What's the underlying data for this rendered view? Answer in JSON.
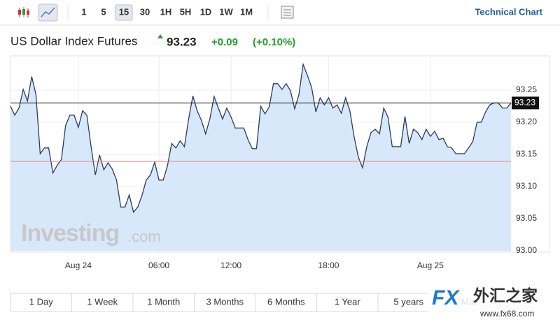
{
  "toolbar": {
    "intervals": [
      "1",
      "5",
      "15",
      "30",
      "1H",
      "5H",
      "1D",
      "1W",
      "1M"
    ],
    "selected_index": 2,
    "technical_chart": "Technical Chart"
  },
  "header": {
    "name": "US Dollar Index Futures",
    "price": "93.23",
    "change": "+0.09",
    "change_percent": "(+0.10%)"
  },
  "chart_data": {
    "type": "area",
    "color": "#2c3b5e",
    "fill": "#d8e8fb",
    "categories": [
      null,
      null,
      null,
      null,
      null,
      null,
      null,
      null,
      null,
      null,
      null,
      null,
      null,
      null,
      null,
      null,
      "Aug 24",
      null,
      null,
      null,
      null,
      null,
      null,
      null,
      null,
      null,
      null,
      null,
      null,
      null,
      null,
      null,
      null,
      null,
      null,
      "06:00",
      null,
      null,
      null,
      null,
      null,
      null,
      null,
      null,
      null,
      null,
      null,
      null,
      null,
      null,
      null,
      null,
      "12:00",
      null,
      null,
      null,
      null,
      null,
      null,
      null,
      null,
      null,
      null,
      null,
      null,
      null,
      null,
      null,
      null,
      null,
      null,
      null,
      null,
      null,
      null,
      "18:00",
      null,
      null,
      null,
      null,
      null,
      null,
      null,
      null,
      null,
      null,
      null,
      null,
      null,
      null,
      null,
      null,
      null,
      null,
      null,
      null,
      null,
      null,
      null,
      "Aug 25",
      null,
      null,
      null,
      null,
      null,
      null,
      null,
      null,
      null,
      null,
      null,
      null,
      null,
      null,
      null,
      null,
      null,
      null,
      null
    ],
    "values": [
      93.225,
      93.211,
      93.222,
      93.251,
      93.233,
      93.271,
      93.243,
      93.151,
      93.16,
      93.16,
      93.121,
      93.133,
      93.142,
      93.195,
      93.211,
      93.211,
      93.192,
      93.218,
      93.211,
      93.162,
      93.118,
      93.149,
      93.126,
      93.137,
      93.127,
      93.11,
      93.068,
      93.068,
      93.087,
      93.06,
      93.068,
      93.086,
      93.11,
      93.118,
      93.138,
      93.11,
      93.11,
      93.132,
      93.167,
      93.16,
      93.171,
      93.162,
      93.205,
      93.241,
      93.218,
      93.203,
      93.182,
      93.205,
      93.24,
      93.222,
      93.205,
      93.222,
      93.208,
      93.191,
      93.191,
      93.191,
      93.173,
      93.159,
      93.159,
      93.225,
      93.213,
      93.224,
      93.26,
      93.26,
      93.251,
      93.26,
      93.249,
      93.221,
      93.243,
      93.29,
      93.273,
      93.254,
      93.216,
      93.238,
      93.227,
      93.238,
      93.222,
      93.227,
      93.214,
      93.238,
      93.218,
      93.178,
      93.146,
      93.129,
      93.162,
      93.184,
      93.189,
      93.182,
      93.222,
      93.208,
      93.162,
      93.162,
      93.162,
      93.209,
      93.167,
      93.189,
      93.184,
      93.173,
      93.189,
      93.178,
      93.186,
      93.173,
      93.175,
      93.162,
      93.16,
      93.151,
      93.151,
      93.151,
      93.16,
      93.17,
      93.2,
      93.2,
      93.216,
      93.227,
      93.23,
      93.23,
      93.222,
      93.222,
      93.23
    ],
    "ylim": [
      93.0,
      93.3
    ],
    "yticks": [
      {
        "value": 93,
        "label": "93.00"
      },
      93.05,
      {
        "value": 93.1,
        "label": "93.10"
      },
      93.15,
      {
        "value": 93.2,
        "label": "93.20"
      },
      93.25
    ],
    "grid": true,
    "reference_line": {
      "value": 93.139,
      "color": "#e58a8a"
    },
    "current_marker": {
      "value": 93.23,
      "label": "93.23",
      "color": "#111111"
    }
  },
  "ranges": [
    "1 Day",
    "1 Week",
    "1 Month",
    "3 Months",
    "6 Months",
    "1 Year",
    "5 years",
    "Max"
  ],
  "watermark": {
    "brand": "Investing",
    "domain": ".com"
  },
  "logo": {
    "mark": "FX",
    "name": "外汇之家",
    "url": "www.fx68.com"
  }
}
